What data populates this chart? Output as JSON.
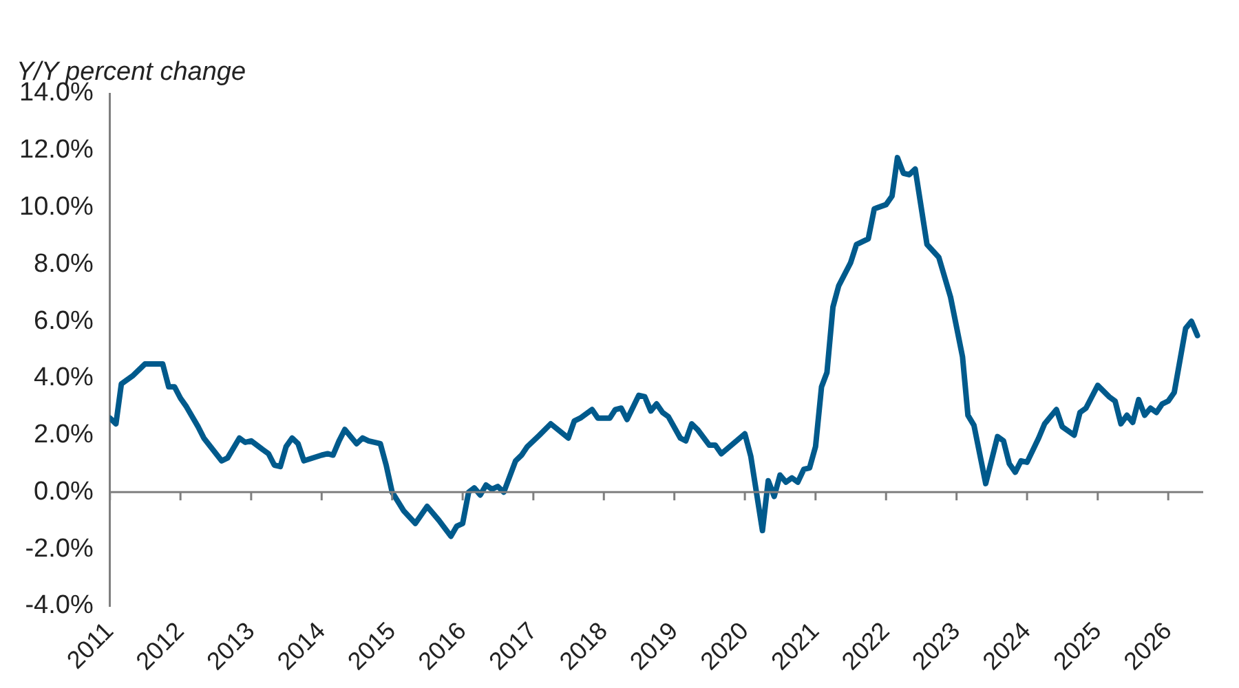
{
  "chart_data": {
    "type": "line",
    "ylabel": "Y/Y percent change",
    "marker": "none",
    "xlim": [
      "2011-01",
      "2026-07"
    ],
    "xticks": [
      "2011",
      "2012",
      "2013",
      "2014",
      "2015",
      "2016",
      "2017",
      "2018",
      "2019",
      "2020",
      "2021",
      "2022",
      "2023",
      "2024",
      "2025",
      "2026"
    ],
    "ylim": [
      -4,
      14
    ],
    "yticks": [
      {
        "value": -4,
        "label": "-4.0%"
      },
      {
        "value": -2,
        "label": "-2.0%"
      },
      {
        "value": 0,
        "label": "0.0%"
      },
      {
        "value": 2,
        "label": "2.0%"
      },
      {
        "value": 4,
        "label": "4.0%"
      },
      {
        "value": 6,
        "label": "6.0%"
      },
      {
        "value": 8,
        "label": "8.0%"
      },
      {
        "value": 10,
        "label": "10.0%"
      },
      {
        "value": 12,
        "label": "12.0%"
      },
      {
        "value": 14,
        "label": "14.0%"
      }
    ],
    "x": [
      "2011-01",
      "2011-02",
      "2011-03",
      "2011-05",
      "2011-07",
      "2011-09",
      "2011-10",
      "2011-11",
      "2011-12",
      "2012-01",
      "2012-02",
      "2012-04",
      "2012-05",
      "2012-08",
      "2012-09",
      "2012-11",
      "2012-12",
      "2013-01",
      "2013-03",
      "2013-04",
      "2013-05",
      "2013-06",
      "2013-07",
      "2013-08",
      "2013-09",
      "2013-10",
      "2014-01",
      "2014-02",
      "2014-03",
      "2014-04",
      "2014-05",
      "2014-07",
      "2014-08",
      "2014-09",
      "2014-11",
      "2014-12",
      "2015-01",
      "2015-03",
      "2015-05",
      "2015-07",
      "2015-09",
      "2015-11",
      "2015-12",
      "2016-01",
      "2016-02",
      "2016-03",
      "2016-04",
      "2016-05",
      "2016-06",
      "2016-07",
      "2016-08",
      "2016-10",
      "2016-11",
      "2016-12",
      "2017-02",
      "2017-04",
      "2017-07",
      "2017-08",
      "2017-09",
      "2017-11",
      "2017-12",
      "2018-02",
      "2018-03",
      "2018-04",
      "2018-05",
      "2018-07",
      "2018-08",
      "2018-09",
      "2018-10",
      "2018-11",
      "2018-12",
      "2019-02",
      "2019-03",
      "2019-04",
      "2019-05",
      "2019-07",
      "2019-08",
      "2019-09",
      "2020-01",
      "2020-02",
      "2020-04",
      "2020-05",
      "2020-06",
      "2020-07",
      "2020-08",
      "2020-09",
      "2020-10",
      "2020-11",
      "2020-12",
      "2021-01",
      "2021-02",
      "2021-03",
      "2021-04",
      "2021-05",
      "2021-07",
      "2021-08",
      "2021-10",
      "2021-11",
      "2022-01",
      "2022-02",
      "2022-03",
      "2022-04",
      "2022-05",
      "2022-06",
      "2022-08",
      "2022-10",
      "2022-12",
      "2023-02",
      "2023-03",
      "2023-04",
      "2023-06",
      "2023-08",
      "2023-09",
      "2023-10",
      "2023-11",
      "2023-12",
      "2024-01",
      "2024-03",
      "2024-04",
      "2024-06",
      "2024-07",
      "2024-09",
      "2024-10",
      "2024-11",
      "2025-01",
      "2025-03",
      "2025-04",
      "2025-05",
      "2025-06",
      "2025-07",
      "2025-08",
      "2025-09",
      "2025-10",
      "2025-11",
      "2025-12",
      "2026-01",
      "2026-02",
      "2026-04",
      "2026-05",
      "2026-06"
    ],
    "series": [
      {
        "color": "#005a8c",
        "values": [
          2.6,
          2.4,
          3.8,
          4.1,
          4.5,
          4.5,
          4.5,
          3.7,
          3.7,
          3.3,
          3.0,
          2.3,
          1.9,
          1.1,
          1.2,
          1.9,
          1.75,
          1.8,
          1.5,
          1.35,
          0.95,
          0.9,
          1.6,
          1.9,
          1.7,
          1.1,
          1.3,
          1.35,
          1.3,
          1.8,
          2.2,
          1.7,
          1.9,
          1.8,
          1.7,
          0.95,
          0.0,
          -0.65,
          -1.1,
          -0.5,
          -1.0,
          -1.55,
          -1.2,
          -1.1,
          0.0,
          0.15,
          -0.1,
          0.25,
          0.1,
          0.2,
          0.0,
          1.1,
          1.3,
          1.6,
          2.0,
          2.4,
          1.9,
          2.5,
          2.6,
          2.9,
          2.6,
          2.6,
          2.9,
          2.95,
          2.55,
          3.4,
          3.35,
          2.85,
          3.1,
          2.8,
          2.65,
          1.9,
          1.8,
          2.4,
          2.2,
          1.65,
          1.65,
          1.35,
          2.05,
          1.25,
          -1.35,
          0.4,
          -0.15,
          0.6,
          0.35,
          0.5,
          0.35,
          0.8,
          0.85,
          1.6,
          3.7,
          4.2,
          6.5,
          7.25,
          8.05,
          8.7,
          8.9,
          9.95,
          10.1,
          10.4,
          11.75,
          11.2,
          11.15,
          11.35,
          8.7,
          8.25,
          6.85,
          4.75,
          2.7,
          2.35,
          0.3,
          1.95,
          1.8,
          1.0,
          0.7,
          1.1,
          1.05,
          1.9,
          2.4,
          2.9,
          2.3,
          2.0,
          2.8,
          2.95,
          3.75,
          3.35,
          3.2,
          2.4,
          2.7,
          2.45,
          3.25,
          2.7,
          2.95,
          2.8,
          3.1,
          3.2,
          3.5,
          5.75,
          6.0,
          5.5
        ]
      }
    ]
  }
}
